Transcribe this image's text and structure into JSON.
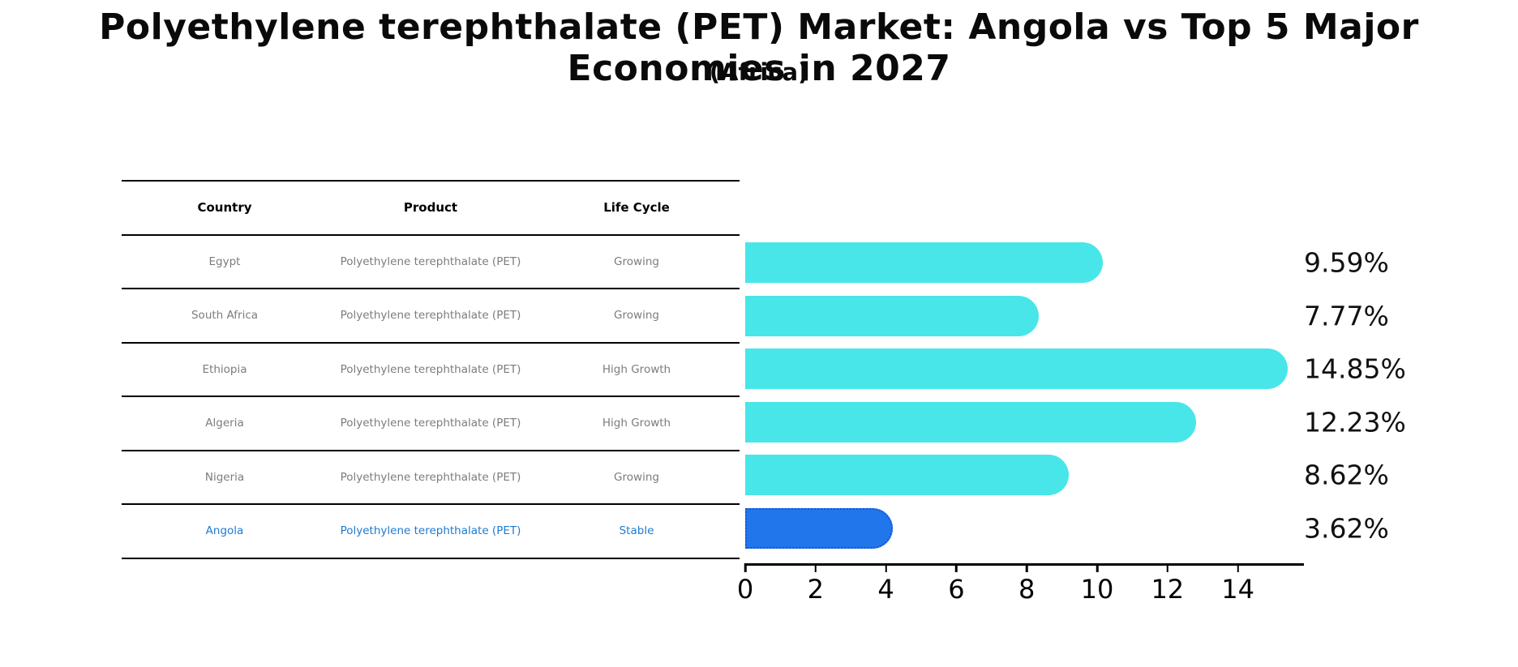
{
  "title": "Polyethylene terephthalate (PET) Market: Angola vs Top 5 Major Economies in 2027",
  "subtitle": "(Africa)",
  "table": {
    "headers": [
      "Country",
      "Product",
      "Life Cycle"
    ],
    "rows": [
      {
        "cells": [
          "Egypt",
          "Polyethylene terephthalate (PET)",
          "Growing"
        ],
        "highlight": false
      },
      {
        "cells": [
          "South Africa",
          "Polyethylene terephthalate (PET)",
          "Growing"
        ],
        "highlight": false
      },
      {
        "cells": [
          "Ethiopia",
          "Polyethylene terephthalate (PET)",
          "High Growth"
        ],
        "highlight": false
      },
      {
        "cells": [
          "Algeria",
          "Polyethylene terephthalate (PET)",
          "High Growth"
        ],
        "highlight": false
      },
      {
        "cells": [
          "Nigeria",
          "Polyethylene terephthalate (PET)",
          "Growing"
        ],
        "highlight": false
      },
      {
        "cells": [
          "Angola",
          "Polyethylene terephthalate (PET)",
          "Stable"
        ],
        "highlight": true
      }
    ]
  },
  "chart_data": {
    "type": "bar",
    "orientation": "horizontal",
    "title": "Polyethylene terephthalate (PET) Market: Angola vs Top 5 Major Economies in 2027",
    "subtitle": "(Africa)",
    "categories": [
      "Egypt",
      "South Africa",
      "Ethiopia",
      "Algeria",
      "Nigeria",
      "Angola"
    ],
    "values": [
      9.59,
      7.77,
      14.85,
      12.23,
      8.62,
      3.62
    ],
    "value_labels": [
      "9.59%",
      "7.77%",
      "14.85%",
      "12.23%",
      "8.62%",
      "3.62%"
    ],
    "x_ticks": [
      0,
      2,
      4,
      6,
      8,
      10,
      12,
      14
    ],
    "xlim": [
      0,
      15.9
    ],
    "xlabel": "",
    "ylabel": "",
    "grid": false,
    "legend": "none",
    "highlight_index": 5,
    "bar_color": "#48E6E8",
    "highlight_color": "#2176EB",
    "highlight_border_color": "#1355D8",
    "value_label_color": "#111111",
    "highlight_text_color": "#1f7ad0",
    "row_text_color": "#7c7c7c"
  }
}
